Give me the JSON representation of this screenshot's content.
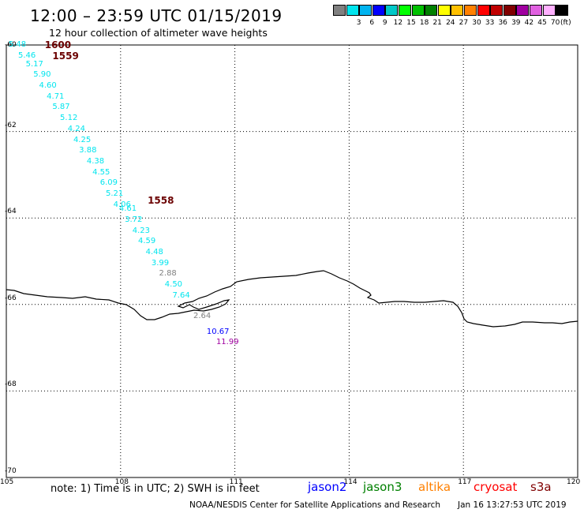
{
  "title": "12:00 – 23:59 UTC 01/15/2019",
  "subtitle": "12 hour collection of altimeter wave heights",
  "color_scale": {
    "unit": "(ft)",
    "bins": [
      {
        "label": "",
        "color": "#808080"
      },
      {
        "label": "3",
        "color": "#00e5ee"
      },
      {
        "label": "6",
        "color": "#00b4f0"
      },
      {
        "label": "9",
        "color": "#0000ff"
      },
      {
        "label": "12",
        "color": "#00c8c8"
      },
      {
        "label": "15",
        "color": "#00ff00"
      },
      {
        "label": "18",
        "color": "#00c000"
      },
      {
        "label": "21",
        "color": "#008000"
      },
      {
        "label": "24",
        "color": "#ffff00"
      },
      {
        "label": "27",
        "color": "#ffc000"
      },
      {
        "label": "30",
        "color": "#ff8000"
      },
      {
        "label": "33",
        "color": "#ff0000"
      },
      {
        "label": "36",
        "color": "#c00000"
      },
      {
        "label": "39",
        "color": "#800000"
      },
      {
        "label": "42",
        "color": "#a000a0"
      },
      {
        "label": "45",
        "color": "#e060e0"
      },
      {
        "label": "70",
        "color": "#ffb0ff"
      },
      {
        "label": "",
        "color": "#000000"
      }
    ]
  },
  "map": {
    "lon_range": [
      105,
      120
    ],
    "lat_range": [
      -60,
      -70
    ],
    "lon_ticks": [
      "105",
      "108",
      "111",
      "114",
      "117",
      "120"
    ],
    "lat_ticks": [
      "-60",
      "-62",
      "-64",
      "-66",
      "-68",
      "-70"
    ]
  },
  "times": [
    {
      "label": "1600",
      "lon": 106.3,
      "lat": -60.0
    },
    {
      "label": "1559",
      "lon": 106.5,
      "lat": -60.25
    },
    {
      "label": "1558",
      "lon": 109.0,
      "lat": -63.6
    }
  ],
  "wave_heights": [
    {
      "value": "5.48",
      "lon": 105.35,
      "lat": -60.0,
      "color": "#00e5ee"
    },
    {
      "value": "5.46",
      "lon": 105.6,
      "lat": -60.25,
      "color": "#00e5ee"
    },
    {
      "value": "5.17",
      "lon": 105.8,
      "lat": -60.45,
      "color": "#00e5ee"
    },
    {
      "value": "5.90",
      "lon": 106.0,
      "lat": -60.7,
      "color": "#00e5ee"
    },
    {
      "value": "4.60",
      "lon": 106.15,
      "lat": -60.95,
      "color": "#00e5ee"
    },
    {
      "value": "4.71",
      "lon": 106.35,
      "lat": -61.2,
      "color": "#00e5ee"
    },
    {
      "value": "5.87",
      "lon": 106.5,
      "lat": -61.45,
      "color": "#00e5ee"
    },
    {
      "value": "5.12",
      "lon": 106.7,
      "lat": -61.7,
      "color": "#00e5ee"
    },
    {
      "value": "4.24",
      "lon": 106.9,
      "lat": -61.95,
      "color": "#00e5ee"
    },
    {
      "value": "4.25",
      "lon": 107.05,
      "lat": -62.2,
      "color": "#00e5ee"
    },
    {
      "value": "3.88",
      "lon": 107.2,
      "lat": -62.45,
      "color": "#00e5ee"
    },
    {
      "value": "4.38",
      "lon": 107.4,
      "lat": -62.7,
      "color": "#00e5ee"
    },
    {
      "value": "4.55",
      "lon": 107.55,
      "lat": -62.95,
      "color": "#00e5ee"
    },
    {
      "value": "6.09",
      "lon": 107.75,
      "lat": -63.2,
      "color": "#00e5ee"
    },
    {
      "value": "5.21",
      "lon": 107.9,
      "lat": -63.45,
      "color": "#00e5ee"
    },
    {
      "value": "4.06",
      "lon": 108.1,
      "lat": -63.7,
      "color": "#00e5ee"
    },
    {
      "value": "4.61",
      "lon": 108.25,
      "lat": -63.8,
      "color": "#00e5ee"
    },
    {
      "value": "3.72",
      "lon": 108.4,
      "lat": -64.05,
      "color": "#00e5ee"
    },
    {
      "value": "4.23",
      "lon": 108.6,
      "lat": -64.3,
      "color": "#00e5ee"
    },
    {
      "value": "4.59",
      "lon": 108.75,
      "lat": -64.55,
      "color": "#00e5ee"
    },
    {
      "value": "4.48",
      "lon": 108.95,
      "lat": -64.8,
      "color": "#00e5ee"
    },
    {
      "value": "3.99",
      "lon": 109.1,
      "lat": -65.05,
      "color": "#00e5ee"
    },
    {
      "value": "2.88",
      "lon": 109.3,
      "lat": -65.3,
      "color": "#808080"
    },
    {
      "value": "4.50",
      "lon": 109.45,
      "lat": -65.55,
      "color": "#00e5ee"
    },
    {
      "value": "7.64",
      "lon": 109.65,
      "lat": -65.8,
      "color": "#00e5ee"
    },
    {
      "value": "2.64",
      "lon": 110.2,
      "lat": -66.28,
      "color": "#808080"
    },
    {
      "value": "10.67",
      "lon": 110.55,
      "lat": -66.65,
      "color": "#0000ff"
    },
    {
      "value": "11.99",
      "lon": 110.8,
      "lat": -66.88,
      "color": "#a000a0"
    }
  ],
  "note": "note: 1) Time is in UTC; 2) SWH is in feet",
  "satellites": [
    {
      "name": "jason2",
      "color": "#0000ff"
    },
    {
      "name": "jason3",
      "color": "#008000"
    },
    {
      "name": "altika",
      "color": "#ff8000"
    },
    {
      "name": "cryosat",
      "color": "#ff0000"
    },
    {
      "name": "s3a",
      "color": "#800000"
    }
  ],
  "credit": "NOAA/NESDIS Center for Satellite Applications and Research",
  "timestamp": "Jan 16 13:27:53 UTC 2019"
}
